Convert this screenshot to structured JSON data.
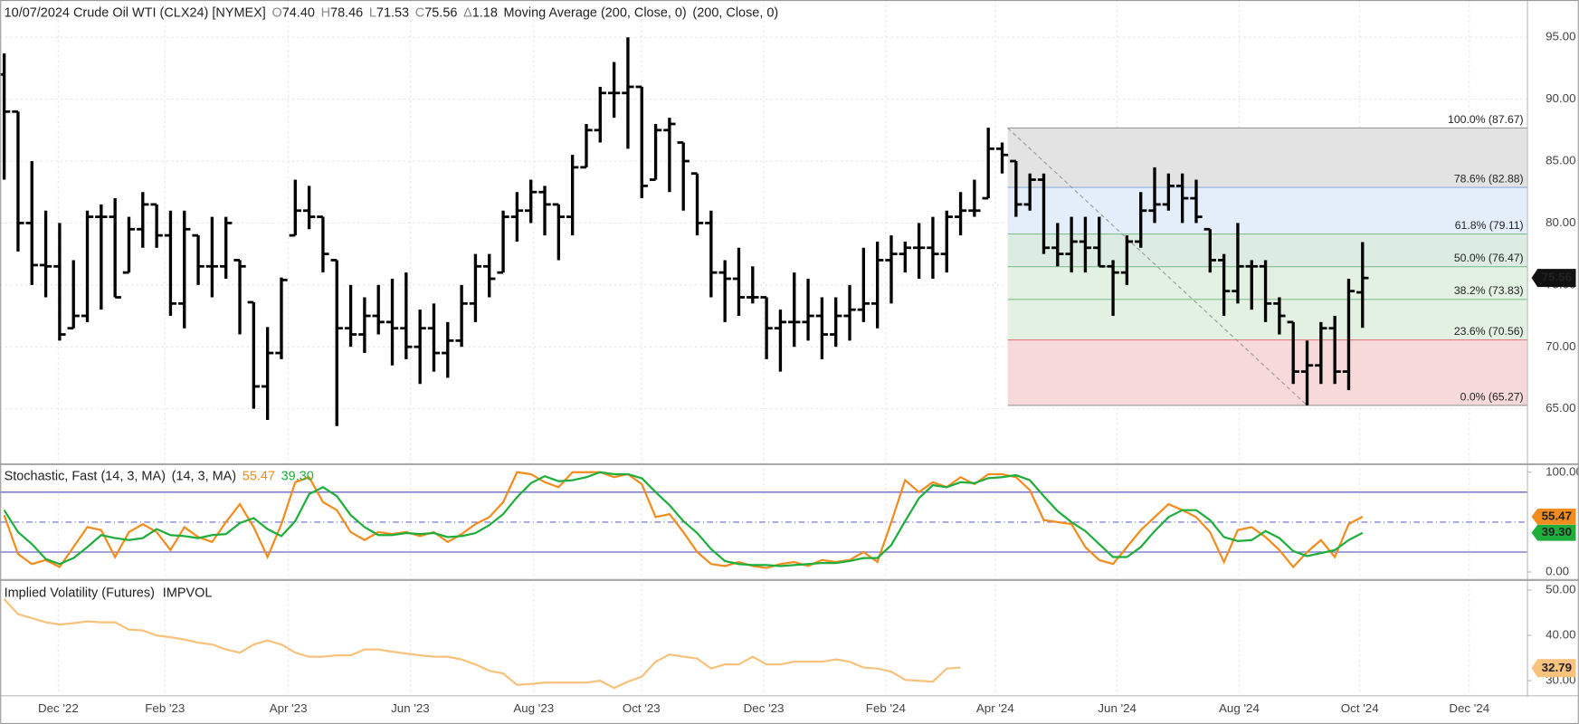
{
  "chart_data": [
    {
      "type": "ohlc",
      "title": "10/07/2024 Crude Oil WTI (CLX24) [NYMEX]",
      "header_values": [
        {
          "label": "O",
          "value": "74.40"
        },
        {
          "label": "H",
          "value": "78.46"
        },
        {
          "label": "L",
          "value": "71.53"
        },
        {
          "label": "C",
          "value": "75.56"
        },
        {
          "label": "Δ",
          "value": "1.18"
        }
      ],
      "indicator": "Moving Average (200, Close, 0)",
      "indicator_params": "(200, Close, 0)",
      "color": "#000000",
      "xlim": [
        -0.29,
        109.9
      ],
      "xticks": [
        {
          "value": 3.9,
          "label": "Dec '22"
        },
        {
          "value": 11.6,
          "label": "Feb '23"
        },
        {
          "value": 20.5,
          "label": "Apr '23"
        },
        {
          "value": 29.3,
          "label": "Jun '23"
        },
        {
          "value": 38.2,
          "label": "Aug '23"
        },
        {
          "value": 45.97,
          "label": "Oct '23"
        },
        {
          "value": 54.8,
          "label": "Dec '23"
        },
        {
          "value": 63.6,
          "label": "Feb '24"
        },
        {
          "value": 71.5,
          "label": "Apr '24"
        },
        {
          "value": 80.3,
          "label": "Jun '24"
        },
        {
          "value": 89.1,
          "label": "Aug '24"
        },
        {
          "value": 97.8,
          "label": "Oct '24"
        },
        {
          "value": 105.7,
          "label": "Dec '24"
        }
      ],
      "ylim": [
        60.6,
        97.85
      ],
      "yticks": [
        {
          "value": 65,
          "label": "65.00"
        },
        {
          "value": 70,
          "label": "70.00"
        },
        {
          "value": 75,
          "label": "75.00"
        },
        {
          "value": 80,
          "label": "80.00"
        },
        {
          "value": 85,
          "label": "85.00"
        },
        {
          "value": 90,
          "label": "90.00"
        },
        {
          "value": 95,
          "label": "95.00"
        }
      ],
      "grid": true,
      "open": [
        92,
        89,
        80,
        76.6,
        76.5,
        71.5,
        72.5,
        80.5,
        80.5,
        76,
        79.5,
        81.5,
        79,
        73.5,
        79,
        76.5,
        76.5,
        77,
        73.6,
        66.8,
        69.5,
        79,
        81,
        80.5,
        77,
        71.5,
        71,
        72.5,
        72,
        71.5,
        70,
        71.5,
        69.5,
        70.5,
        73.5,
        76.5,
        76,
        80.5,
        81,
        82.5,
        81.5,
        80.5,
        84.5,
        87.5,
        90.5,
        90.5,
        91,
        83.5,
        87.5,
        86.5,
        84,
        80,
        76,
        75.5,
        74,
        74,
        71.5,
        72,
        72,
        72.5,
        71,
        72.5,
        73,
        73.5,
        77,
        77.5,
        78,
        78,
        77.5,
        80.5,
        81,
        82,
        86,
        85,
        81.5,
        83.5,
        78,
        77.5,
        78.5,
        78,
        76.5,
        76,
        78.5,
        81,
        81.5,
        83,
        82,
        79.5,
        77,
        74.5,
        76.5,
        76.5,
        73.5,
        72,
        68,
        68.5,
        71.5,
        68,
        74.4
      ],
      "high": [
        93.7,
        89,
        85,
        81,
        80,
        77,
        81,
        81.5,
        82,
        80.5,
        82.5,
        81.5,
        81,
        81,
        79,
        80.5,
        80.5,
        77,
        73.6,
        71.6,
        75.6,
        83.5,
        83,
        80.5,
        77,
        75,
        74,
        75,
        75.5,
        76,
        73,
        73.5,
        72,
        75,
        77.5,
        77.5,
        81,
        82.5,
        83.5,
        83,
        81.5,
        85.5,
        88,
        91,
        93,
        95,
        91,
        88,
        88.5,
        86.5,
        84,
        81,
        77,
        78,
        76.5,
        74,
        73,
        76,
        75.5,
        74,
        74,
        75,
        78,
        78.5,
        79,
        78.5,
        80,
        80.5,
        81,
        82.5,
        83.5,
        87.7,
        86.5,
        85,
        84,
        84,
        80,
        80.5,
        80.5,
        80.5,
        77,
        79,
        82.5,
        84.5,
        84,
        84,
        83.5,
        79.5,
        77.5,
        80,
        77,
        77,
        74,
        72,
        70.5,
        72,
        72.5,
        75.5,
        78.46
      ],
      "low": [
        83.5,
        77.7,
        75,
        74,
        70.5,
        71.5,
        72,
        73,
        74,
        76,
        78,
        78,
        72.5,
        71.5,
        75,
        74,
        75.5,
        71,
        65,
        64.1,
        69,
        79,
        79.5,
        76,
        63.6,
        70,
        69.5,
        71,
        68.5,
        69,
        67,
        68,
        67.5,
        70,
        72,
        74,
        76,
        78.5,
        80,
        79,
        77,
        79,
        84.5,
        86.5,
        88.5,
        86,
        82,
        83.5,
        82.5,
        81,
        79,
        74,
        72,
        72.5,
        73.5,
        69,
        68,
        70,
        70.5,
        69,
        70,
        70.5,
        72,
        71.5,
        73.5,
        76,
        75.5,
        75.5,
        76,
        79,
        80.5,
        82,
        84,
        80.5,
        81,
        77.5,
        76.5,
        76,
        76,
        76.5,
        72.5,
        75,
        78,
        80,
        81,
        80,
        80,
        76,
        72.5,
        73.5,
        73,
        72,
        71,
        67,
        65.27,
        67,
        67,
        66.5,
        71.53
      ],
      "close": [
        89,
        80,
        76.6,
        76.5,
        71,
        72.5,
        80.5,
        80.5,
        74,
        79.5,
        81.5,
        79,
        73.5,
        79.5,
        76.5,
        76.5,
        80,
        76.5,
        66.8,
        69.5,
        75.4,
        81,
        80.5,
        77.5,
        71.5,
        71,
        72.5,
        72,
        71.5,
        70,
        71.5,
        69.5,
        70.5,
        73.5,
        76.5,
        75.5,
        80.5,
        81,
        82.5,
        81.5,
        80.5,
        84.5,
        87.5,
        90.5,
        90.5,
        91,
        83,
        87.5,
        88,
        85,
        80,
        76,
        75.5,
        74,
        74,
        71.5,
        72,
        72,
        72.5,
        71,
        72.5,
        73,
        73.5,
        77,
        77.5,
        78,
        78,
        77.5,
        80.5,
        81,
        81,
        86,
        85.5,
        81.5,
        83.5,
        78,
        77.5,
        78.5,
        78,
        76.5,
        76,
        78.5,
        81,
        81.5,
        83,
        82,
        80.5,
        77,
        74.5,
        76.5,
        76.5,
        73.5,
        72.5,
        68,
        68.5,
        71.5,
        68,
        74.5,
        75.56
      ],
      "fibonacci": {
        "x_from": 72.4,
        "x_to": 94,
        "levels": [
          {
            "value": 87.67,
            "label": "100.0% (87.67)"
          },
          {
            "value": 82.88,
            "label": "78.6% (82.88)"
          },
          {
            "value": 79.11,
            "label": "61.8% (79.11)"
          },
          {
            "value": 76.47,
            "label": "50.0% (76.47)"
          },
          {
            "value": 73.83,
            "label": "38.2% (73.83)"
          },
          {
            "value": 70.56,
            "label": "23.6% (70.56)"
          },
          {
            "value": 65.27,
            "label": "0.0% (65.27)"
          }
        ],
        "line_colors": [
          "#9a9a9a",
          "#8fb0dc",
          "#7fbf8f",
          "#7fbf8f",
          "#7fbf8f",
          "#e08080",
          "#9a9a9a"
        ],
        "label_colors": [
          "#8a8a8a",
          "#7f9fcf",
          "#5fa07a",
          "#5fa07a",
          "#5fa07a",
          "#c96060",
          "#8a8a8a"
        ],
        "zone_colors": [
          "#e3e3e3",
          "#e3eefa",
          "#dcece2",
          "#e3f1e3",
          "#e3f1e3",
          "#f7d9d9"
        ]
      }
    },
    {
      "type": "line",
      "title": "Stochastic, Fast (14, 3, MA)",
      "params": "(14, 3, MA)",
      "ylim": [
        -8,
        108
      ],
      "yticks": [
        {
          "value": 0,
          "label": "0.00"
        },
        {
          "value": 100,
          "label": "100.00"
        }
      ],
      "levels": [
        80,
        20
      ],
      "level_color": "#6a6ac8",
      "midline": 50,
      "series": [
        {
          "color": "#f28c1e",
          "last_label": "55.47",
          "values": [
            57,
            18,
            8,
            12,
            5,
            25,
            45,
            42,
            15,
            40,
            48,
            40,
            22,
            45,
            35,
            30,
            50,
            68,
            45,
            15,
            48,
            90,
            95,
            70,
            62,
            40,
            32,
            40,
            38,
            40,
            36,
            40,
            30,
            38,
            48,
            55,
            70,
            100,
            98,
            90,
            85,
            100,
            100,
            100,
            95,
            98,
            88,
            55,
            58,
            40,
            20,
            8,
            6,
            10,
            6,
            4,
            8,
            10,
            6,
            12,
            10,
            12,
            20,
            10,
            50,
            92,
            80,
            90,
            85,
            95,
            88,
            98,
            98,
            95,
            82,
            52,
            50,
            48,
            25,
            12,
            8,
            25,
            42,
            55,
            68,
            62,
            55,
            40,
            10,
            42,
            45,
            35,
            22,
            5,
            20,
            32,
            15,
            48,
            55.47
          ]
        },
        {
          "color": "#1fae3c",
          "last_label": "39.30",
          "values": [
            62,
            40,
            28,
            13,
            8,
            14,
            25,
            37,
            34,
            32,
            34,
            43,
            37,
            36,
            34,
            37,
            38,
            49,
            54,
            43,
            36,
            51,
            78,
            85,
            76,
            57,
            45,
            37,
            37,
            39,
            38,
            39,
            35,
            36,
            39,
            47,
            58,
            75,
            89,
            96,
            91,
            92,
            95,
            100,
            98,
            98,
            94,
            80,
            67,
            51,
            39,
            23,
            11,
            8,
            7,
            7,
            6,
            7,
            8,
            9,
            9,
            11,
            14,
            14,
            27,
            51,
            74,
            87,
            85,
            90,
            89,
            94,
            95,
            97,
            92,
            76,
            61,
            50,
            41,
            28,
            15,
            15,
            25,
            41,
            55,
            62,
            62,
            52,
            35,
            31,
            32,
            41,
            34,
            21,
            16,
            19,
            22,
            32,
            39.3
          ]
        }
      ]
    },
    {
      "type": "line",
      "title": "Implied Volatility (Futures)",
      "params": "IMPVOL",
      "ylim": [
        26.9,
        52
      ],
      "yticks": [
        {
          "value": 30,
          "label": "30.00"
        },
        {
          "value": 40,
          "label": "40.00"
        },
        {
          "value": 50,
          "label": "50.00"
        }
      ],
      "last_value": 32.79,
      "series": [
        {
          "color": "#f7c27c",
          "values": [
            48,
            44.7,
            43.8,
            42.9,
            42.4,
            42.7,
            43.1,
            42.9,
            42.9,
            41.3,
            41.1,
            40,
            39.6,
            39.1,
            38.4,
            38,
            36.9,
            36.2,
            38,
            38.9,
            38,
            36.2,
            35.3,
            35.3,
            35.6,
            35.6,
            36.9,
            36.9,
            36.4,
            36,
            35.6,
            35.3,
            35.3,
            34.7,
            33.6,
            32.2,
            31.6,
            29.1,
            29.3,
            29.6,
            29.6,
            29.6,
            29.6,
            30,
            28.4,
            29.8,
            30.9,
            34.2,
            35.8,
            35.3,
            34.9,
            32.7,
            33.6,
            33.6,
            35.3,
            33.6,
            33.6,
            34.2,
            34.2,
            34.2,
            34.7,
            34.2,
            32.9,
            32.7,
            32,
            30.2,
            30,
            29.8,
            32.7,
            32.9,
            null,
            null,
            null,
            null,
            null,
            null,
            null,
            null,
            null,
            null,
            null,
            null,
            null,
            null,
            null,
            null,
            null,
            null,
            null,
            null,
            null,
            null,
            null,
            null,
            null,
            null,
            null,
            null,
            null
          ]
        }
      ]
    }
  ]
}
